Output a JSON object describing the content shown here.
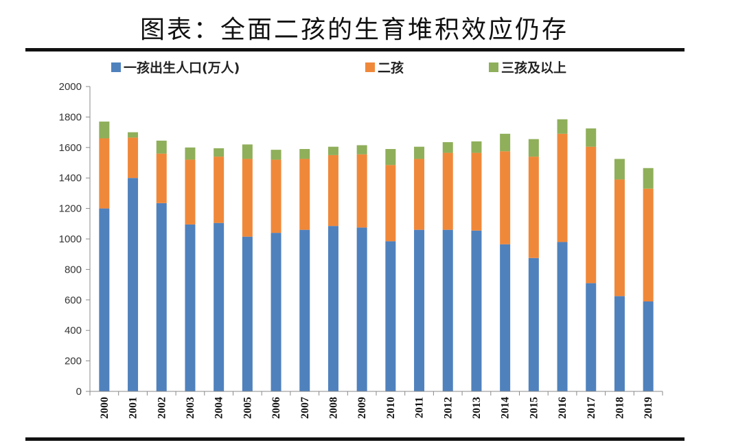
{
  "title": "图表：全面二孩的生育堆积效应仍存",
  "colors": {
    "first_child": "#4f81bd",
    "second_child": "#f0883a",
    "third_plus": "#8faf5a"
  },
  "chart_data": {
    "type": "bar",
    "stacked": true,
    "categories": [
      "2000",
      "2001",
      "2002",
      "2003",
      "2004",
      "2005",
      "2006",
      "2007",
      "2008",
      "2009",
      "2010",
      "2011",
      "2012",
      "2013",
      "2014",
      "2015",
      "2016",
      "2017",
      "2018",
      "2019"
    ],
    "series": [
      {
        "name": "一孩出生人口(万人)",
        "values": [
          1200,
          1400,
          1235,
          1095,
          1105,
          1015,
          1040,
          1060,
          1085,
          1075,
          985,
          1060,
          1060,
          1055,
          965,
          875,
          980,
          710,
          625,
          590
        ]
      },
      {
        "name": "二孩",
        "values": [
          460,
          265,
          325,
          425,
          435,
          510,
          480,
          465,
          465,
          480,
          500,
          465,
          505,
          510,
          610,
          665,
          710,
          895,
          765,
          740
        ]
      },
      {
        "name": "三孩及以上",
        "values": [
          110,
          35,
          85,
          80,
          55,
          95,
          65,
          65,
          55,
          60,
          105,
          80,
          70,
          75,
          115,
          115,
          95,
          120,
          135,
          135
        ]
      }
    ],
    "yticks": [
      "0",
      "200",
      "400",
      "600",
      "800",
      "1000",
      "1200",
      "1400",
      "1600",
      "1800",
      "2000"
    ],
    "ylim": [
      0,
      2000
    ],
    "legend_position": "top"
  }
}
